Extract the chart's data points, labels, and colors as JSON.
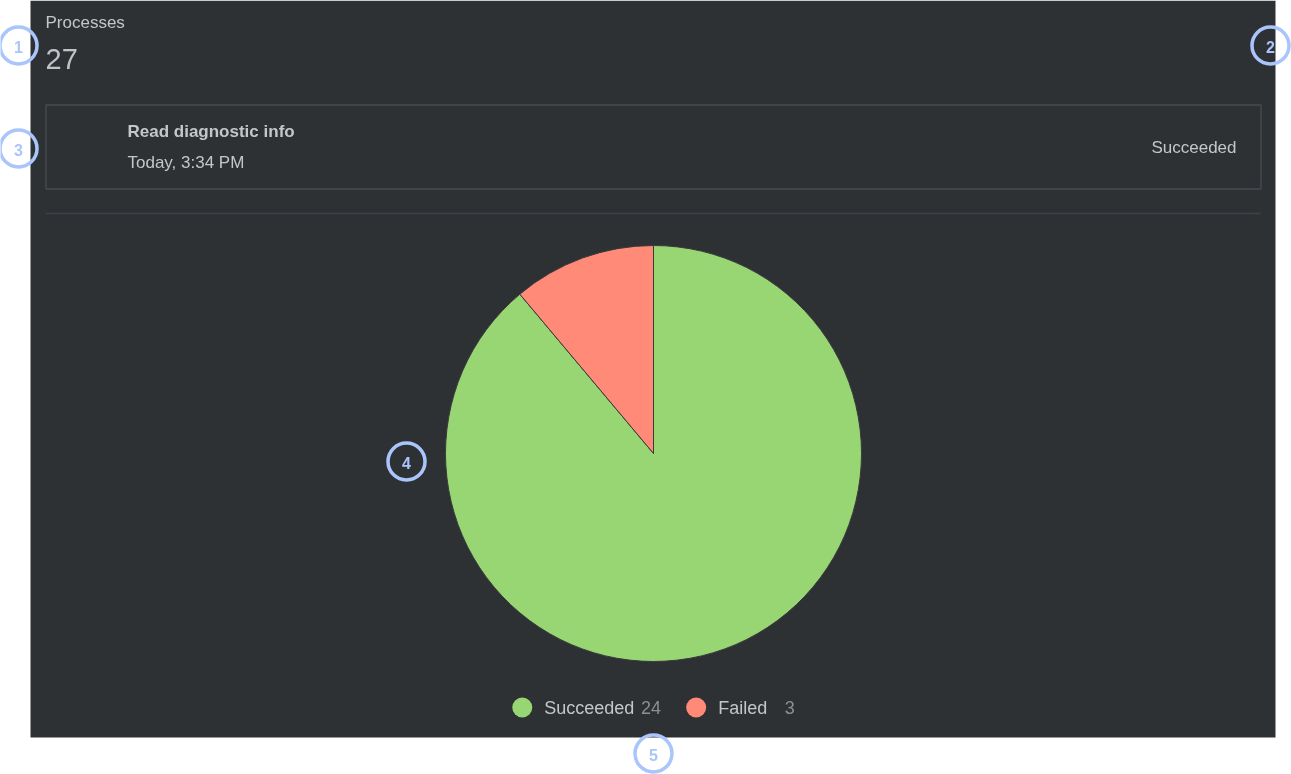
{
  "chart_data": {
    "type": "pie",
    "title": "Processes",
    "subtitle": "27",
    "categories": [
      "Succeeded",
      "Failed"
    ],
    "values": [
      24,
      3
    ],
    "colors": [
      "#98d674",
      "#ff8a78"
    ],
    "legend": "bottom",
    "data_labels": true,
    "annotations": [
      "Read diagnostic info",
      "Today, 3:34 PM",
      "Succeeded",
      "1",
      "2",
      "3",
      "4",
      "5"
    ]
  }
}
